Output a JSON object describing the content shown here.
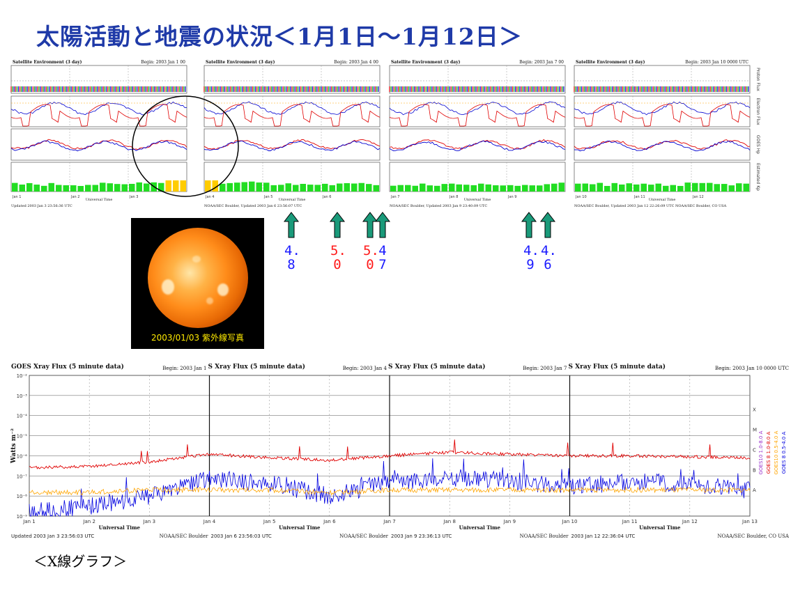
{
  "title": "太陽活動と地震の状況＜1月1日～1月12日＞",
  "footer": "＜X線グラフ＞",
  "sun_photo": {
    "caption": "2003/01/03 紫外線写真"
  },
  "satellite_panels": [
    {
      "header_left": "Satellite Environment (3 day)",
      "header_right": "Begin: 2003 Jan 1 00",
      "days": [
        "Jan 1",
        "Jan 2",
        "Jan 3"
      ],
      "bottom_text": "Updated 2003 Jan 3 23:56:36 UTC",
      "x_title": "Universal Time"
    },
    {
      "header_left": "Satellite Environment (3 day)",
      "header_right": "Begin: 2003 Jan 4 00",
      "days": [
        "Jan 4",
        "Jan 5",
        "Jan 6"
      ],
      "bottom_text": "NOAA/SEC Boulder, Updated 2003 Jan 6 23:56:07 UTC",
      "x_title": "Universal Time"
    },
    {
      "header_left": "Satellite Environment (3 day)",
      "header_right": "Begin: 2003 Jan 7 00",
      "days": [
        "Jan 7",
        "Jan 8",
        "Jan 9"
      ],
      "bottom_text": "NOAA/SEC Boulder, Updated 2003 Jan 9 23:40:09 UTC",
      "x_title": "Universal Time"
    },
    {
      "header_left": "Satellite Environment (3 day)",
      "header_right": "Begin: 2003 Jan 10 0000 UTC",
      "days": [
        "Jan 10",
        "Jan 11",
        "Jan 12"
      ],
      "bottom_text": "NOAA/SEC Boulder, Updated 2003 Jan 12 22:26:09 UTC   NOAA/SEC Boulder, CO USA",
      "x_title": "Universal Time"
    }
  ],
  "satellite_side_labels": [
    "Proton Flux",
    "Electron Flux",
    "GOES Hp",
    "Estimated Kp"
  ],
  "earthquakes": [
    {
      "magnitude_top": "4.",
      "magnitude_bottom": "8",
      "color": "#1a1aff"
    },
    {
      "magnitude_top": "5.",
      "magnitude_bottom": "0",
      "color": "#ff1a1a"
    },
    {
      "magnitude_top": "5.",
      "magnitude_bottom": "0",
      "color": "#ff1a1a"
    },
    {
      "magnitude_top": "4",
      "magnitude_bottom": "7",
      "color": "#1a1aff"
    },
    {
      "magnitude_top": "4.",
      "magnitude_bottom": "9",
      "color": "#1a1aff"
    },
    {
      "magnitude_top": "4.",
      "magnitude_bottom": "6",
      "color": "#1a1aff"
    }
  ],
  "arrow_color": "#1a9a7a",
  "xray_panels": [
    {
      "header_left": "GOES Xray Flux (5 minute data)",
      "header_right": "Begin: 2003 Jan 1",
      "days": [
        "Jan 1",
        "Jan 2",
        "Jan 3",
        "Jan 4"
      ],
      "x_title": "Universal Time",
      "bottom_left": "Updated 2003 Jan 3 23:56:03 UTC",
      "bottom_right": "NOAA/SEC Boulder"
    },
    {
      "header_left": "S Xray Flux (5 minute data)",
      "header_right": "Begin: 2003 Jan 4",
      "days": [
        "Jan 4",
        "Jan 5",
        "Jan 6",
        "Jan 7"
      ],
      "x_title": "Universal Time",
      "bottom_left": "2003 Jan 6 23:56:03 UTC",
      "bottom_right": "NOAA/SEC Boulder"
    },
    {
      "header_left": "S Xray Flux (5 minute data)",
      "header_right": "Begin: 2003 Jan 7",
      "days": [
        "Jan 7",
        "Jan 8",
        "Jan 9",
        "Jan 10"
      ],
      "x_title": "Universal Time",
      "bottom_left": "2003 Jan 9 23:36:13 UTC",
      "bottom_right": "NOAA/SEC Boulder"
    },
    {
      "header_left": "S Xray Flux (5 minute data)",
      "header_right": "Begin: 2003 Jan 10 0000 UTC",
      "days": [
        "Jan 10",
        "Jan 11",
        "Jan 12",
        "Jan 13"
      ],
      "x_title": "Universal Time",
      "bottom_left": "2003 Jan 12 22:36:04 UTC",
      "bottom_right": "NOAA/SEC Boulder, CO USA"
    }
  ],
  "xray_ylabel": "Watts m⁻²",
  "xray_ticks": [
    "10⁻²",
    "10⁻³",
    "10⁻⁴",
    "10⁻⁵",
    "10⁻⁶",
    "10⁻⁷",
    "10⁻⁸",
    "10⁻⁹"
  ],
  "xray_legend": [
    "GOES10 1.0-8.0 A",
    "GOES 8 1.0-8.0 A",
    "GOES10 0.5-4.0 A",
    "GOES 8 0.5-4.0 A"
  ],
  "xray_flare_classes": [
    "X",
    "M",
    "C",
    "B",
    "A"
  ],
  "chart_data": [
    {
      "type": "line",
      "title": "GOES Xray Flux (5 minute data)",
      "xlabel": "Universal Time",
      "ylabel": "Watts m⁻²",
      "ylim": [
        1e-09,
        0.01
      ],
      "yscale": "log",
      "x": [
        "Jan 1",
        "Jan 2",
        "Jan 3",
        "Jan 4",
        "Jan 5",
        "Jan 6",
        "Jan 7",
        "Jan 8",
        "Jan 9",
        "Jan 10",
        "Jan 11",
        "Jan 12",
        "Jan 13"
      ],
      "series": [
        {
          "name": "GOES 8 1.0-8.0 A",
          "color": "#e00000",
          "values": [
            2.5e-07,
            3e-07,
            5e-07,
            1.2e-06,
            8e-07,
            6e-07,
            1e-06,
            1.5e-06,
            1.2e-06,
            1e-06,
            1e-06,
            9e-07,
            8e-07
          ]
        },
        {
          "name": "GOES 8 0.5-4.0 A",
          "color": "#0000e0",
          "values": [
            1.5e-09,
            3e-09,
            1e-08,
            8e-08,
            4e-08,
            1e-08,
            5e-08,
            8e-08,
            6e-08,
            3e-08,
            5e-08,
            4e-08,
            2e-08
          ]
        },
        {
          "name": "GOES10 0.5-4.0 A",
          "color": "#ffa500",
          "values": [
            1.5e-08,
            1.5e-08,
            2e-08,
            2e-08,
            2e-08,
            1.5e-08,
            2e-08,
            2e-08,
            2e-08,
            2e-08,
            2e-08,
            2e-08,
            2e-08
          ]
        }
      ]
    },
    {
      "type": "bar",
      "title": "Estimated Kp",
      "categories": [
        "Jan 1",
        "Jan 2",
        "Jan 3",
        "Jan 4",
        "Jan 5",
        "Jan 6",
        "Jan 7",
        "Jan 8",
        "Jan 9",
        "Jan 10",
        "Jan 11",
        "Jan 12"
      ],
      "values": [
        2,
        2,
        3,
        3,
        2,
        2,
        2,
        2,
        2,
        2,
        2,
        2
      ]
    }
  ]
}
